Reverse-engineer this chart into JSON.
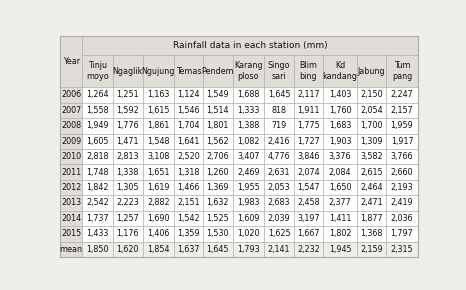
{
  "title": "Rainfall data in each station (mm)",
  "col_headers": [
    "Tinju\nmoyo",
    "Ngaglik",
    "Ngujung",
    "Temas",
    "Pendem",
    "Karang\nploso",
    "Singo\nsari",
    "Blim\nbing",
    "Kd\nkandang",
    "Jabung",
    "Tum\npang"
  ],
  "row_headers": [
    "Year",
    "2006",
    "2007",
    "2008",
    "2009",
    "2010",
    "2011",
    "2012",
    "2013",
    "2014",
    "2015",
    "mean"
  ],
  "data": [
    [
      "1,264",
      "1,251",
      "1,163",
      "1,124",
      "1,549",
      "1,688",
      "1,645",
      "2,117",
      "1,403",
      "2,150",
      "2,247"
    ],
    [
      "1,558",
      "1,592",
      "1,615",
      "1,546",
      "1,514",
      "1,333",
      "818",
      "1,911",
      "1,760",
      "2,054",
      "2,157"
    ],
    [
      "1,949",
      "1,776",
      "1,861",
      "1,704",
      "1,801",
      "1,388",
      "719",
      "1,775",
      "1,683",
      "1,700",
      "1,959"
    ],
    [
      "1,605",
      "1,471",
      "1,548",
      "1,641",
      "1,562",
      "1,082",
      "2,416",
      "1,727",
      "1,903",
      "1,309",
      "1,917"
    ],
    [
      "2,818",
      "2,813",
      "3,108",
      "2,520",
      "2,706",
      "3,407",
      "4,776",
      "3,846",
      "3,376",
      "3,582",
      "3,766"
    ],
    [
      "1,748",
      "1,338",
      "1,651",
      "1,318",
      "1,260",
      "2,469",
      "2,631",
      "2,074",
      "2,084",
      "2,615",
      "2,660"
    ],
    [
      "1,842",
      "1,305",
      "1,619",
      "1,466",
      "1,369",
      "1,955",
      "2,053",
      "1,547",
      "1,650",
      "2,464",
      "2,193"
    ],
    [
      "2,542",
      "2,223",
      "2,882",
      "2,151",
      "1,632",
      "1,983",
      "2,683",
      "2,458",
      "2,377",
      "2,471",
      "2,419"
    ],
    [
      "1,737",
      "1,257",
      "1,690",
      "1,542",
      "1,525",
      "1,609",
      "2,039",
      "3,197",
      "1,411",
      "1,877",
      "2,036"
    ],
    [
      "1,433",
      "1,176",
      "1,406",
      "1,359",
      "1,530",
      "1,020",
      "1,625",
      "1,667",
      "1,802",
      "1,368",
      "1,797"
    ],
    [
      "1,850",
      "1,620",
      "1,854",
      "1,637",
      "1,645",
      "1,793",
      "2,141",
      "2,232",
      "1,945",
      "2,159",
      "2,315"
    ]
  ],
  "bg_color": "#f0eeea",
  "header_bg": "#e0ddd8",
  "white": "#ffffff",
  "mean_bg": "#f0eeea",
  "border_color": "#aaaaaa",
  "text_color": "#111111",
  "font_size": 5.8,
  "header_font_size": 5.8,
  "title_font_size": 6.5
}
